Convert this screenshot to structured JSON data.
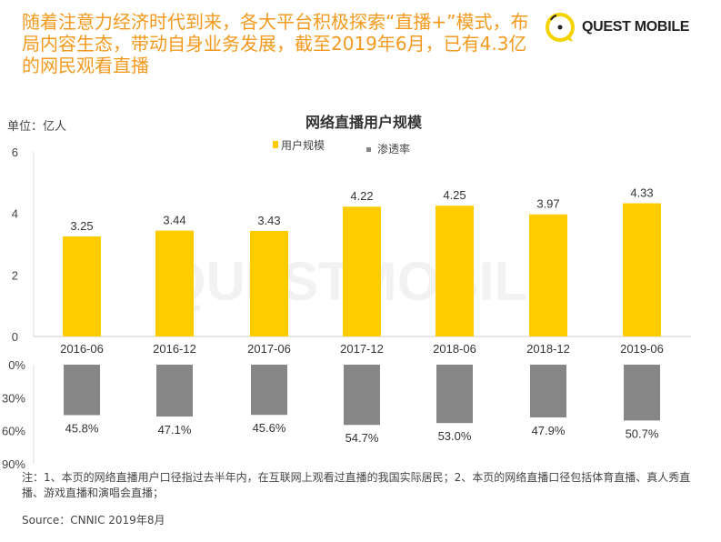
{
  "headline": "随着注意力经济时代到来，各大平台积极探索“直播+”模式，布局内容生态，带动自身业务发展，截至2019年6月，已有4.3亿的网民观看直播",
  "logo": {
    "text": "QUEST MOBILE"
  },
  "watermark": "QUESTMOBILE",
  "colors": {
    "headline": "#f39a1e",
    "users": "#ffcc00",
    "penetration": "#868686"
  },
  "chart_data": [
    {
      "type": "bar",
      "title": "网络直播用户规模",
      "unit_label": "单位：亿人",
      "legend": [
        "用户规模",
        "渗透率"
      ],
      "legend_placement": "top-center",
      "categories": [
        "2016-06",
        "2016-12",
        "2017-06",
        "2017-12",
        "2018-06",
        "2018-12",
        "2019-06"
      ],
      "series": [
        {
          "name": "用户规模",
          "values": [
            3.25,
            3.44,
            3.43,
            4.22,
            4.25,
            3.97,
            4.33
          ],
          "labels": [
            "3.25",
            "3.44",
            "3.43",
            "4.22",
            "4.25",
            "3.97",
            "4.33"
          ]
        }
      ],
      "ylim": [
        0,
        6
      ],
      "yticks": [
        "0",
        "2",
        "4",
        "6"
      ]
    },
    {
      "type": "bar",
      "orientation": "downward",
      "categories": [
        "2016-06",
        "2016-12",
        "2017-06",
        "2017-12",
        "2018-06",
        "2018-12",
        "2019-06"
      ],
      "series": [
        {
          "name": "渗透率",
          "values": [
            45.8,
            47.1,
            45.6,
            54.7,
            53.0,
            47.9,
            50.7
          ],
          "labels": [
            "45.8%",
            "47.1%",
            "45.6%",
            "54.7%",
            "53.0%",
            "47.9%",
            "50.7%"
          ]
        }
      ],
      "ylim": [
        0,
        90
      ],
      "yticks": [
        "0%",
        "30%",
        "60%",
        "90%"
      ]
    }
  ],
  "note": "注：1、本页的网络直播用户口径指过去半年内，在互联网上观看过直播的我国实际居民；2、本页的网络直播口径包括体育直播、真人秀直播、游戏直播和演唱会直播；",
  "source": "Source：CNNIC 2019年8月"
}
